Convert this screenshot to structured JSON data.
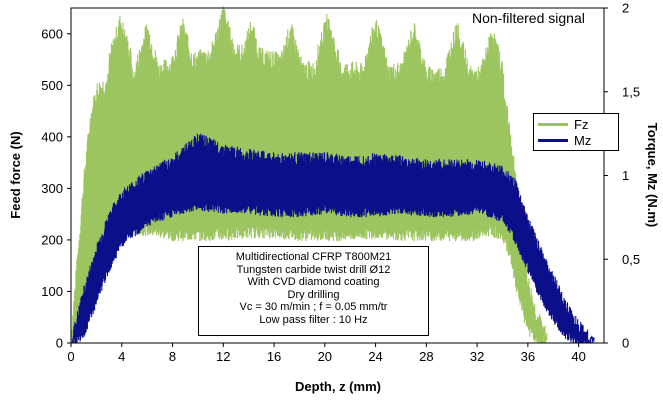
{
  "chart_data": {
    "type": "area",
    "note": "Non-filtered signal",
    "xlabel": "Depth, z (mm)",
    "ylabel_left": "Feed force (N)",
    "ylabel_right": "Torque, Mz (N.m)",
    "xlim": [
      0,
      42
    ],
    "ylim_left": [
      0,
      650
    ],
    "ylim_right": [
      0,
      2
    ],
    "x_ticks": [
      "0",
      "4",
      "8",
      "12",
      "16",
      "20",
      "24",
      "28",
      "32",
      "36",
      "40"
    ],
    "y_left_ticks": [
      "0",
      "100",
      "200",
      "300",
      "400",
      "500",
      "600"
    ],
    "y_right_ticks": [
      "0",
      "0,5",
      "1",
      "1,5",
      "2"
    ],
    "legend": [
      {
        "label": "Fz",
        "color": "#9dc55f"
      },
      {
        "label": "Mz",
        "color": "#0b0f8a"
      }
    ],
    "info_box": [
      "Multidirectional CFRP T800M21",
      "Tungsten carbide twist drill Ø12",
      "With CVD diamond coating",
      "Dry drilling",
      "Vc = 30 m/min ; f = 0.05 mm/tr",
      "Low pass filter : 10 Hz"
    ],
    "series": [
      {
        "name": "Fz",
        "axis": "left",
        "color": "#9dc55f",
        "x": [
          0,
          0.5,
          1,
          1.5,
          2,
          3,
          4,
          6,
          8,
          10,
          12,
          14,
          16,
          18,
          20,
          22,
          24,
          26,
          28,
          30,
          32,
          33,
          34,
          34.5,
          35,
          35.5,
          36,
          36.5,
          37,
          37.5
        ],
        "upper": [
          0,
          150,
          300,
          420,
          480,
          500,
          500,
          510,
          530,
          540,
          560,
          550,
          540,
          520,
          520,
          520,
          510,
          520,
          510,
          510,
          510,
          500,
          480,
          420,
          320,
          200,
          110,
          60,
          25,
          0
        ],
        "lower": [
          0,
          20,
          80,
          120,
          160,
          200,
          220,
          220,
          210,
          210,
          210,
          215,
          215,
          210,
          210,
          210,
          215,
          210,
          210,
          210,
          210,
          220,
          210,
          180,
          120,
          70,
          30,
          10,
          0,
          0
        ],
        "peaks": [
          {
            "x": 3.9,
            "y": 615
          },
          {
            "x": 6.0,
            "y": 600
          },
          {
            "x": 8.8,
            "y": 605
          },
          {
            "x": 12.0,
            "y": 632
          },
          {
            "x": 14.2,
            "y": 605
          },
          {
            "x": 17.3,
            "y": 600
          },
          {
            "x": 20.2,
            "y": 615
          },
          {
            "x": 24.0,
            "y": 608
          },
          {
            "x": 27.0,
            "y": 600
          },
          {
            "x": 30.4,
            "y": 600
          },
          {
            "x": 33.2,
            "y": 590
          }
        ]
      },
      {
        "name": "Mz",
        "axis": "right",
        "color": "#0b0f8a",
        "x": [
          0,
          1,
          2,
          3,
          4,
          6,
          8,
          9,
          10,
          12,
          14,
          16,
          18,
          20,
          22,
          24,
          26,
          28,
          30,
          32,
          34,
          35,
          36,
          37,
          38,
          39,
          40,
          41,
          41.3
        ],
        "upper": [
          0,
          0.3,
          0.55,
          0.75,
          0.88,
          1.0,
          1.08,
          1.15,
          1.22,
          1.15,
          1.12,
          1.1,
          1.1,
          1.1,
          1.08,
          1.1,
          1.08,
          1.06,
          1.06,
          1.06,
          1.02,
          0.95,
          0.72,
          0.55,
          0.38,
          0.22,
          0.1,
          0.02,
          0
        ],
        "lower": [
          0,
          0.05,
          0.25,
          0.45,
          0.6,
          0.72,
          0.78,
          0.8,
          0.82,
          0.8,
          0.8,
          0.78,
          0.78,
          0.8,
          0.78,
          0.78,
          0.8,
          0.78,
          0.78,
          0.8,
          0.75,
          0.62,
          0.45,
          0.28,
          0.15,
          0.05,
          0.0,
          0.0,
          0
        ]
      }
    ]
  }
}
